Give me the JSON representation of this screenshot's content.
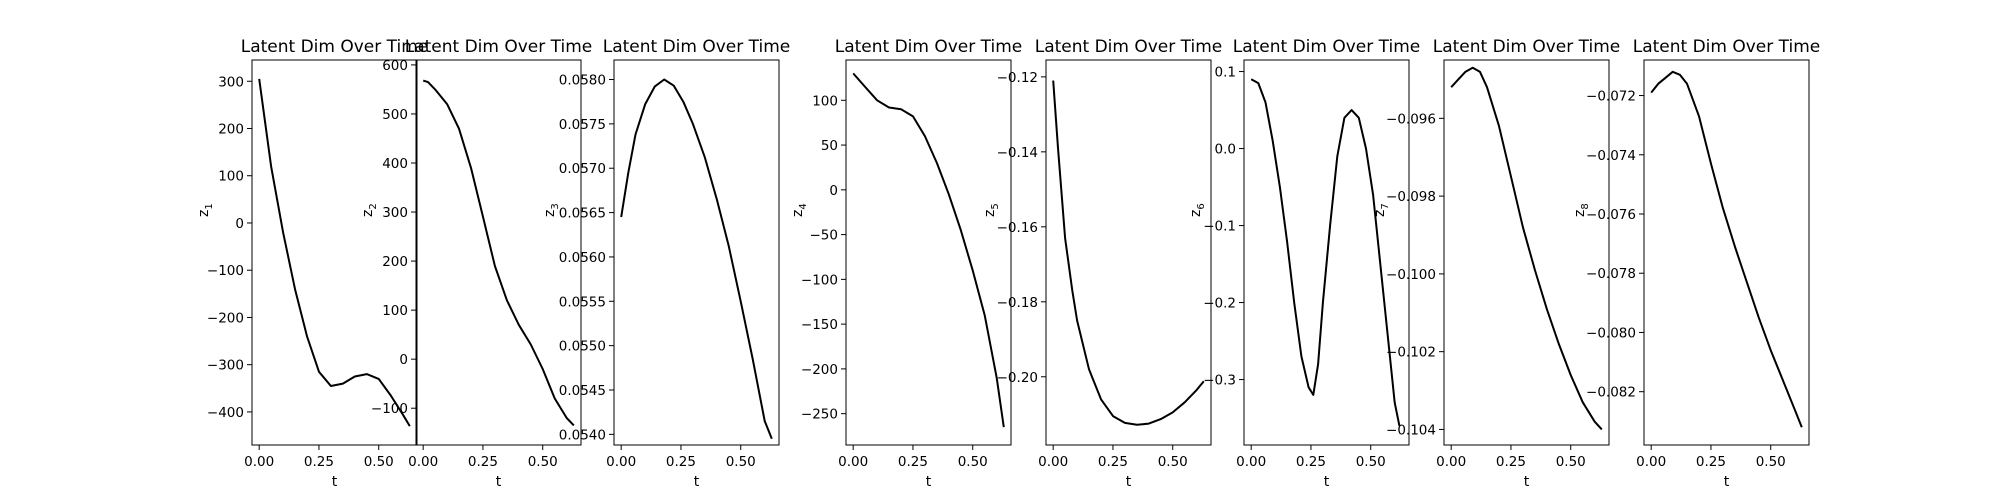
{
  "chart_data": [
    {
      "type": "line",
      "title": "Latent Dim Over Time",
      "xlabel": "t",
      "ylabel": "z",
      "ylabel_sub": "1",
      "xlim": [
        -0.03,
        0.66
      ],
      "ylim": [
        -470,
        345
      ],
      "xticks": [
        0.0,
        0.25,
        0.5
      ],
      "xtick_labels": [
        "0.00",
        "0.25",
        "0.50"
      ],
      "yticks": [
        300,
        200,
        100,
        0,
        -100,
        -200,
        -300,
        -400
      ],
      "ytick_labels": [
        "300",
        "200",
        "100",
        "0",
        "−100",
        "−200",
        "−300",
        "−400"
      ],
      "line_color": "#000000",
      "x": [
        0.0,
        0.05,
        0.1,
        0.15,
        0.2,
        0.25,
        0.3,
        0.35,
        0.4,
        0.45,
        0.5,
        0.55,
        0.6,
        0.63
      ],
      "y": [
        305,
        120,
        -20,
        -140,
        -240,
        -315,
        -345,
        -340,
        -325,
        -320,
        -330,
        -365,
        -405,
        -430
      ]
    },
    {
      "type": "line",
      "title": "Latent Dim Over Time",
      "xlabel": "t",
      "ylabel": "z",
      "ylabel_sub": "2",
      "xlim": [
        -0.03,
        0.66
      ],
      "ylim": [
        -175,
        610
      ],
      "xticks": [
        0.0,
        0.25,
        0.5
      ],
      "xtick_labels": [
        "0.00",
        "0.25",
        "0.50"
      ],
      "yticks": [
        600,
        500,
        400,
        300,
        200,
        100,
        0,
        -100
      ],
      "ytick_labels": [
        "600",
        "500",
        "400",
        "300",
        "200",
        "100",
        "0",
        "−100"
      ],
      "line_color": "#000000",
      "x": [
        0.0,
        0.02,
        0.05,
        0.1,
        0.15,
        0.2,
        0.25,
        0.3,
        0.35,
        0.4,
        0.45,
        0.5,
        0.55,
        0.6,
        0.63
      ],
      "y": [
        568,
        565,
        550,
        520,
        470,
        390,
        290,
        190,
        120,
        70,
        30,
        -20,
        -80,
        -120,
        -135
      ]
    },
    {
      "type": "line",
      "title": "Latent Dim Over Time",
      "xlabel": "t",
      "ylabel": "z",
      "ylabel_sub": "3",
      "xlim": [
        -0.03,
        0.66
      ],
      "ylim": [
        0.05388,
        0.05822
      ],
      "xticks": [
        0.0,
        0.25,
        0.5
      ],
      "xtick_labels": [
        "0.00",
        "0.25",
        "0.50"
      ],
      "yticks": [
        0.058,
        0.0575,
        0.057,
        0.0565,
        0.056,
        0.0555,
        0.055,
        0.0545,
        0.054
      ],
      "ytick_labels": [
        "0.0580",
        "0.0575",
        "0.0570",
        "0.0565",
        "0.0560",
        "0.0555",
        "0.0550",
        "0.0545",
        "0.0540"
      ],
      "line_color": "#000000",
      "x": [
        0.0,
        0.03,
        0.06,
        0.1,
        0.14,
        0.18,
        0.22,
        0.26,
        0.3,
        0.35,
        0.4,
        0.45,
        0.5,
        0.55,
        0.6,
        0.63
      ],
      "y": [
        0.05645,
        0.05695,
        0.05738,
        0.05772,
        0.05792,
        0.058,
        0.05793,
        0.05775,
        0.0575,
        0.05712,
        0.05665,
        0.05612,
        0.0555,
        0.05485,
        0.05415,
        0.05395
      ]
    },
    {
      "type": "line",
      "title": "Latent Dim Over Time",
      "xlabel": "t",
      "ylabel": "z",
      "ylabel_sub": "4",
      "xlim": [
        -0.03,
        0.66
      ],
      "ylim": [
        -285,
        145
      ],
      "xticks": [
        0.0,
        0.25,
        0.5
      ],
      "xtick_labels": [
        "0.00",
        "0.25",
        "0.50"
      ],
      "yticks": [
        100,
        50,
        0,
        -50,
        -100,
        -150,
        -200,
        -250
      ],
      "ytick_labels": [
        "100",
        "50",
        "0",
        "−50",
        "−100",
        "−150",
        "−200",
        "−250"
      ],
      "line_color": "#000000",
      "x": [
        0.0,
        0.05,
        0.1,
        0.15,
        0.2,
        0.25,
        0.3,
        0.35,
        0.4,
        0.45,
        0.5,
        0.55,
        0.6,
        0.63
      ],
      "y": [
        130,
        115,
        100,
        92,
        90,
        82,
        60,
        30,
        -5,
        -45,
        -90,
        -140,
        -210,
        -265
      ]
    },
    {
      "type": "line",
      "title": "Latent Dim Over Time",
      "xlabel": "t",
      "ylabel": "z",
      "ylabel_sub": "5",
      "xlim": [
        -0.03,
        0.66
      ],
      "ylim": [
        -0.2182,
        -0.1155
      ],
      "xticks": [
        0.0,
        0.25,
        0.5
      ],
      "xtick_labels": [
        "0.00",
        "0.25",
        "0.50"
      ],
      "yticks": [
        -0.12,
        -0.14,
        -0.16,
        -0.18,
        -0.2
      ],
      "ytick_labels": [
        "−0.12",
        "−0.14",
        "−0.16",
        "−0.18",
        "−0.20"
      ],
      "line_color": "#000000",
      "x": [
        0.0,
        0.02,
        0.05,
        0.08,
        0.1,
        0.15,
        0.2,
        0.25,
        0.3,
        0.35,
        0.4,
        0.45,
        0.5,
        0.55,
        0.6,
        0.63
      ],
      "y": [
        -0.121,
        -0.139,
        -0.163,
        -0.177,
        -0.185,
        -0.198,
        -0.206,
        -0.2105,
        -0.2123,
        -0.2128,
        -0.2125,
        -0.2113,
        -0.2095,
        -0.2068,
        -0.2035,
        -0.2012
      ]
    },
    {
      "type": "line",
      "title": "Latent Dim Over Time",
      "xlabel": "t",
      "ylabel": "z",
      "ylabel_sub": "6",
      "xlim": [
        -0.03,
        0.66
      ],
      "ylim": [
        -0.385,
        0.115
      ],
      "xticks": [
        0.0,
        0.25,
        0.5
      ],
      "xtick_labels": [
        "0.00",
        "0.25",
        "0.50"
      ],
      "yticks": [
        0.1,
        0.0,
        -0.1,
        -0.2,
        -0.3
      ],
      "ytick_labels": [
        "0.1",
        "0.0",
        "−0.1",
        "−0.2",
        "−0.3"
      ],
      "line_color": "#000000",
      "x": [
        0.0,
        0.03,
        0.06,
        0.09,
        0.12,
        0.15,
        0.18,
        0.21,
        0.24,
        0.26,
        0.28,
        0.3,
        0.33,
        0.36,
        0.39,
        0.42,
        0.45,
        0.48,
        0.51,
        0.54,
        0.57,
        0.6,
        0.62
      ],
      "y": [
        0.09,
        0.085,
        0.06,
        0.01,
        -0.05,
        -0.12,
        -0.2,
        -0.27,
        -0.31,
        -0.32,
        -0.28,
        -0.2,
        -0.1,
        -0.01,
        0.04,
        0.05,
        0.04,
        0.0,
        -0.06,
        -0.15,
        -0.24,
        -0.33,
        -0.36
      ]
    },
    {
      "type": "line",
      "title": "Latent Dim Over Time",
      "xlabel": "t",
      "ylabel": "z",
      "ylabel_sub": "7",
      "xlim": [
        -0.03,
        0.66
      ],
      "ylim": [
        -0.1044,
        -0.0945
      ],
      "xticks": [
        0.0,
        0.25,
        0.5
      ],
      "xtick_labels": [
        "0.00",
        "0.25",
        "0.50"
      ],
      "yticks": [
        -0.096,
        -0.098,
        -0.1,
        -0.102,
        -0.104
      ],
      "ytick_labels": [
        "−0.096",
        "−0.098",
        "−0.100",
        "−0.102",
        "−0.104"
      ],
      "line_color": "#000000",
      "x": [
        0.0,
        0.03,
        0.06,
        0.09,
        0.12,
        0.15,
        0.2,
        0.25,
        0.3,
        0.35,
        0.4,
        0.45,
        0.5,
        0.55,
        0.6,
        0.63
      ],
      "y": [
        -0.0952,
        -0.095,
        -0.0948,
        -0.0947,
        -0.0948,
        -0.0952,
        -0.0962,
        -0.0975,
        -0.0988,
        -0.0999,
        -0.1009,
        -0.1018,
        -0.1026,
        -0.1033,
        -0.1038,
        -0.104
      ]
    },
    {
      "type": "line",
      "title": "Latent Dim Over Time",
      "xlabel": "t",
      "ylabel": "z",
      "ylabel_sub": "8",
      "xlim": [
        -0.03,
        0.66
      ],
      "ylim": [
        -0.0838,
        -0.0708
      ],
      "xticks": [
        0.0,
        0.25,
        0.5
      ],
      "xtick_labels": [
        "0.00",
        "0.25",
        "0.50"
      ],
      "yticks": [
        -0.072,
        -0.074,
        -0.076,
        -0.078,
        -0.08,
        -0.082
      ],
      "ytick_labels": [
        "−0.072",
        "−0.074",
        "−0.076",
        "−0.078",
        "−0.080",
        "−0.082"
      ],
      "line_color": "#000000",
      "x": [
        0.0,
        0.03,
        0.06,
        0.09,
        0.12,
        0.15,
        0.2,
        0.25,
        0.3,
        0.35,
        0.4,
        0.45,
        0.5,
        0.55,
        0.6,
        0.63
      ],
      "y": [
        -0.0719,
        -0.0716,
        -0.0714,
        -0.0712,
        -0.0713,
        -0.0716,
        -0.0727,
        -0.0743,
        -0.0758,
        -0.0771,
        -0.0783,
        -0.0795,
        -0.0806,
        -0.0816,
        -0.0826,
        -0.0832
      ]
    }
  ]
}
